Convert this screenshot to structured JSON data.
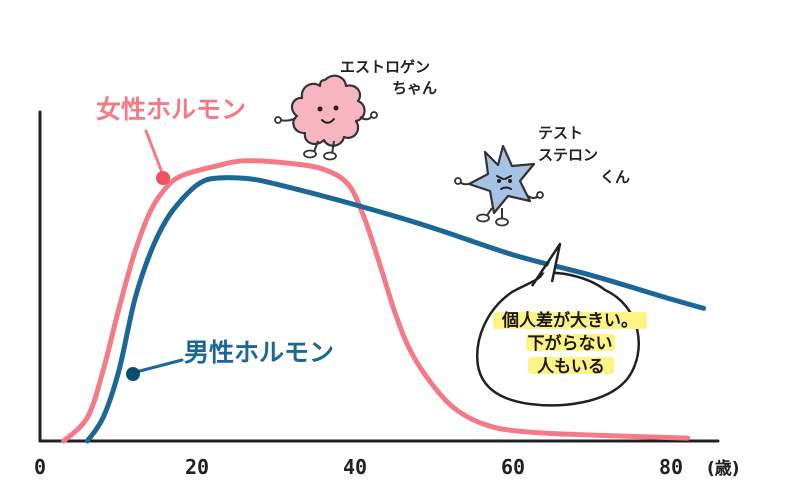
{
  "chart_data": {
    "type": "line",
    "xlabel": "",
    "x_unit": "(歳)",
    "xlim": [
      0,
      85
    ],
    "ylim": [
      0,
      100
    ],
    "x_ticks": [
      "0",
      "20",
      "40",
      "60",
      "80"
    ],
    "grid": false,
    "series": [
      {
        "name": "女性ホルモン",
        "color": "#f47a86",
        "points": [
          [
            3,
            0
          ],
          [
            6,
            8
          ],
          [
            8,
            24
          ],
          [
            10,
            45
          ],
          [
            12,
            64
          ],
          [
            14,
            78
          ],
          [
            16,
            86
          ],
          [
            18,
            90
          ],
          [
            22,
            93
          ],
          [
            26,
            95
          ],
          [
            32,
            94
          ],
          [
            36,
            92
          ],
          [
            39,
            87
          ],
          [
            41,
            76
          ],
          [
            43,
            60
          ],
          [
            45,
            43
          ],
          [
            47,
            30
          ],
          [
            50,
            18
          ],
          [
            53,
            10
          ],
          [
            57,
            5
          ],
          [
            62,
            3
          ],
          [
            70,
            2
          ],
          [
            82,
            1
          ]
        ]
      },
      {
        "name": "男性ホルモン",
        "color": "#1b6896",
        "points": [
          [
            6,
            0
          ],
          [
            8,
            8
          ],
          [
            10,
            24
          ],
          [
            12,
            48
          ],
          [
            14,
            64
          ],
          [
            16,
            75
          ],
          [
            18,
            82
          ],
          [
            20,
            87
          ],
          [
            22,
            89
          ],
          [
            26,
            89
          ],
          [
            30,
            87
          ],
          [
            40,
            80
          ],
          [
            50,
            72
          ],
          [
            60,
            63
          ],
          [
            70,
            56
          ],
          [
            80,
            48
          ],
          [
            84,
            45
          ]
        ]
      }
    ],
    "annotations": {
      "female_character": "エストロゲン\nちゃん",
      "male_character": "テスト\nステロン\nくん",
      "speech_bubble": [
        "個人差が大きい。",
        "下がらない",
        "人もいる"
      ]
    }
  }
}
